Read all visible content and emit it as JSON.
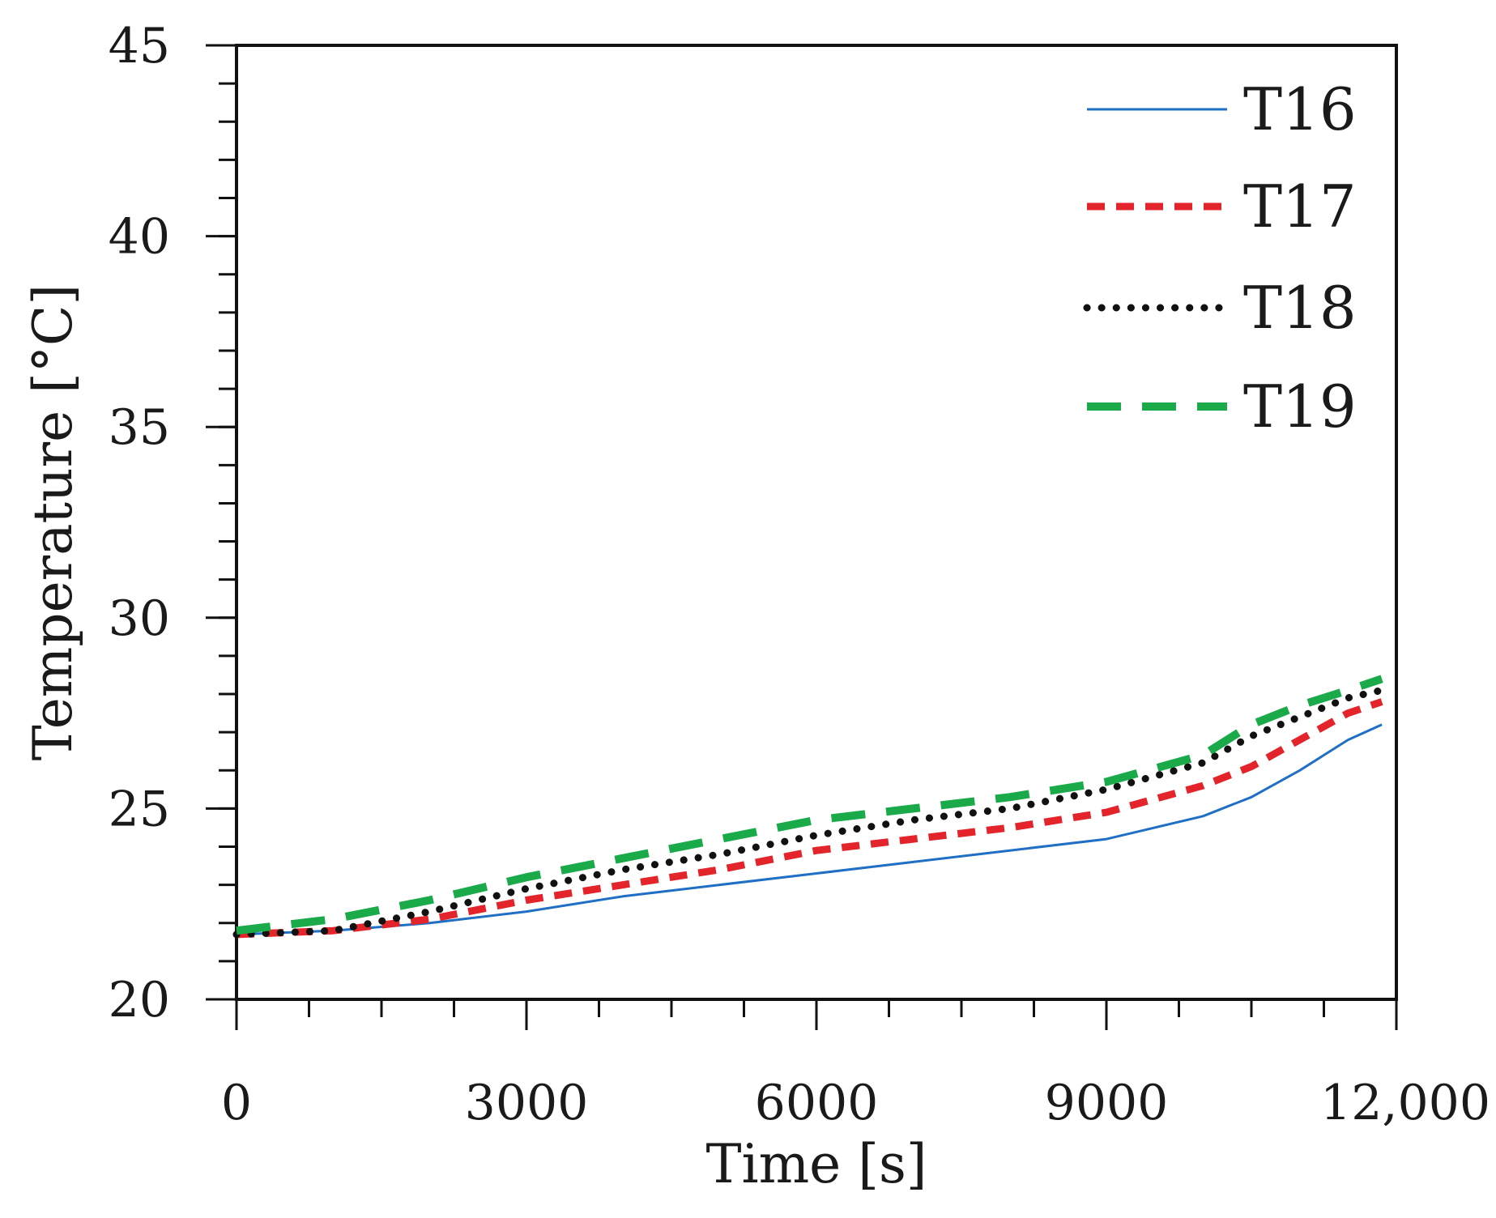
{
  "chart_data": {
    "type": "line",
    "title": "",
    "xlabel": "Time [s]",
    "ylabel": "Temperature  [°C]",
    "xlim": [
      0,
      12000
    ],
    "ylim": [
      20,
      45
    ],
    "xticks": [
      {
        "value": 0,
        "label": "0"
      },
      {
        "value": 3000,
        "label": "3000"
      },
      {
        "value": 6000,
        "label": "6000"
      },
      {
        "value": 9000,
        "label": "9000"
      },
      {
        "value": 12000,
        "label": "12,000"
      }
    ],
    "yticks": [
      {
        "value": 20,
        "label": "20"
      },
      {
        "value": 25,
        "label": "25"
      },
      {
        "value": 30,
        "label": "30"
      },
      {
        "value": 35,
        "label": "35"
      },
      {
        "value": 40,
        "label": "40"
      },
      {
        "value": 45,
        "label": "45"
      }
    ],
    "x_minor_step": 750,
    "y_minor_step": 1,
    "grid": false,
    "legend_position": "top-right",
    "x": [
      0,
      1000,
      2000,
      3000,
      4000,
      5000,
      6000,
      7000,
      8000,
      9000,
      10000,
      10500,
      11000,
      11500,
      11850
    ],
    "series": [
      {
        "name": "T16",
        "color": "#1f6fc5",
        "style": "solid",
        "values": [
          21.7,
          21.8,
          22.0,
          22.3,
          22.7,
          23.0,
          23.3,
          23.6,
          23.9,
          24.2,
          24.8,
          25.3,
          26.0,
          26.8,
          27.2
        ]
      },
      {
        "name": "T17",
        "color": "#e3242b",
        "style": "dashed",
        "values": [
          21.7,
          21.8,
          22.1,
          22.6,
          23.0,
          23.4,
          23.9,
          24.2,
          24.5,
          24.9,
          25.6,
          26.1,
          26.8,
          27.5,
          27.8
        ]
      },
      {
        "name": "T18",
        "color": "#111111",
        "style": "dotted",
        "values": [
          21.7,
          21.8,
          22.3,
          22.9,
          23.4,
          23.8,
          24.3,
          24.7,
          25.0,
          25.5,
          26.2,
          26.9,
          27.4,
          27.9,
          28.1
        ]
      },
      {
        "name": "T19",
        "color": "#1aaa4a",
        "style": "longdash",
        "values": [
          21.8,
          22.1,
          22.6,
          23.2,
          23.7,
          24.2,
          24.7,
          25.0,
          25.3,
          25.7,
          26.4,
          27.2,
          27.7,
          28.1,
          28.4
        ]
      }
    ]
  }
}
